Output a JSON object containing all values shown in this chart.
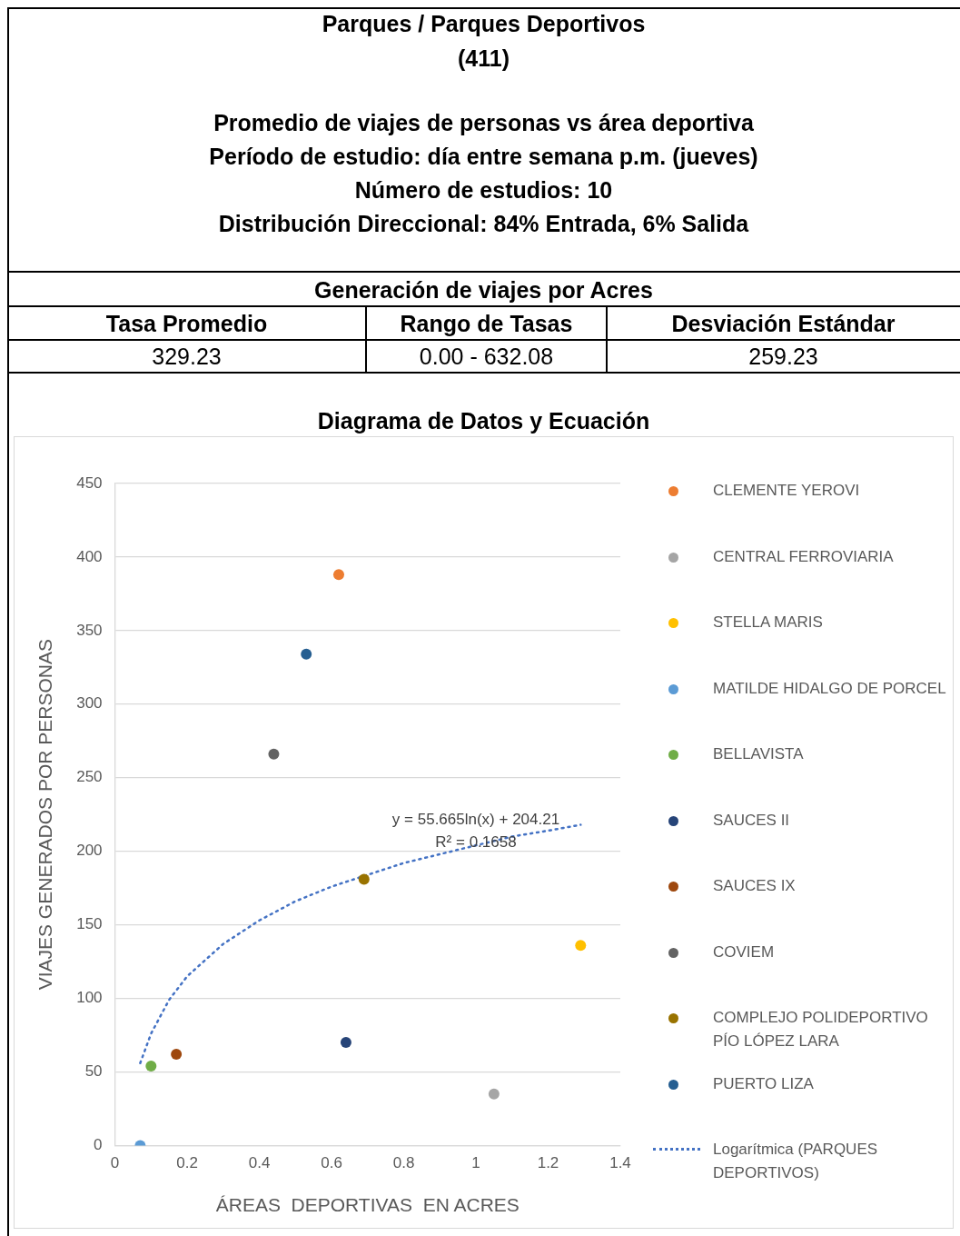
{
  "chart_data": {
    "type": "scatter",
    "title": "Parques  / Parques Deportivos",
    "subtitle": "(411)",
    "xlabel": "ÁREAS  DEPORTIVAS  EN ACRES",
    "ylabel": "VIAJES GENERADOS POR PERSONAS",
    "xlim": [
      0,
      1.4
    ],
    "xticks": [
      0,
      0.2,
      0.4,
      0.6,
      0.8,
      1,
      1.2,
      1.4
    ],
    "ylim": [
      0,
      450
    ],
    "yticks": [
      0,
      50,
      100,
      150,
      200,
      250,
      300,
      350,
      400,
      450
    ],
    "grid": "y",
    "legend": "right",
    "marker": "circle",
    "series": [
      {
        "name": "CLEMENTE YEROVI",
        "color": "#ed7d31",
        "x": [
          0.62
        ],
        "values": [
          388
        ]
      },
      {
        "name": "CENTRAL FERROVIARIA",
        "color": "#a5a5a5",
        "x": [
          1.05
        ],
        "values": [
          35
        ]
      },
      {
        "name": "STELLA MARIS",
        "color": "#ffc000",
        "x": [
          1.29
        ],
        "values": [
          136
        ]
      },
      {
        "name": "MATILDE HIDALGO DE PORCEL",
        "color": "#5b9bd5",
        "x": [
          0.07
        ],
        "values": [
          0
        ]
      },
      {
        "name": "BELLAVISTA",
        "color": "#70ad47",
        "x": [
          0.1
        ],
        "values": [
          54
        ]
      },
      {
        "name": "SAUCES II",
        "color": "#264478",
        "x": [
          0.64
        ],
        "values": [
          70
        ]
      },
      {
        "name": "SAUCES IX",
        "color": "#9e480e",
        "x": [
          0.17
        ],
        "values": [
          62
        ]
      },
      {
        "name": "COVIEM",
        "color": "#636363",
        "x": [
          0.44
        ],
        "values": [
          266
        ]
      },
      {
        "name": "COMPLEJO POLIDEPORTIVO PÍO LÓPEZ LARA",
        "color": "#997300",
        "x": [
          0.69
        ],
        "values": [
          181
        ]
      },
      {
        "name": "PUERTO LIZA",
        "color": "#255e91",
        "x": [
          0.53
        ],
        "values": [
          334
        ]
      },
      {
        "name": "Logarítmica (PARQUES DEPORTIVOS)",
        "color": "#4472c4",
        "type": "line",
        "line_style": "dotted",
        "marker": "none",
        "x": [
          0.07,
          0.1,
          0.15,
          0.2,
          0.3,
          0.4,
          0.5,
          0.6,
          0.7,
          0.8,
          0.9,
          1.0,
          1.1,
          1.2,
          1.29
        ],
        "values": [
          56,
          76,
          99,
          115,
          137,
          153,
          166,
          176,
          184,
          192,
          198,
          204,
          210,
          214,
          218
        ]
      }
    ],
    "annotations": [
      "Promedio de viajes de personas  vs  área deportiva",
      "Período de estudio: día entre semana p.m. (jueves)",
      "Número de estudios: 10",
      "Distribución Direccional: 84% Entrada, 6% Salida",
      "Generación de viajes por Acres",
      "Tasa Promedio",
      "Rango de Tasas",
      "Desviación Estándar",
      "329.23",
      "0.00 - 632.08",
      "259.23",
      "Diagrama de Datos y Ecuación",
      "y = 55.665ln(x) + 204.21",
      "R² = 0.1658"
    ]
  }
}
